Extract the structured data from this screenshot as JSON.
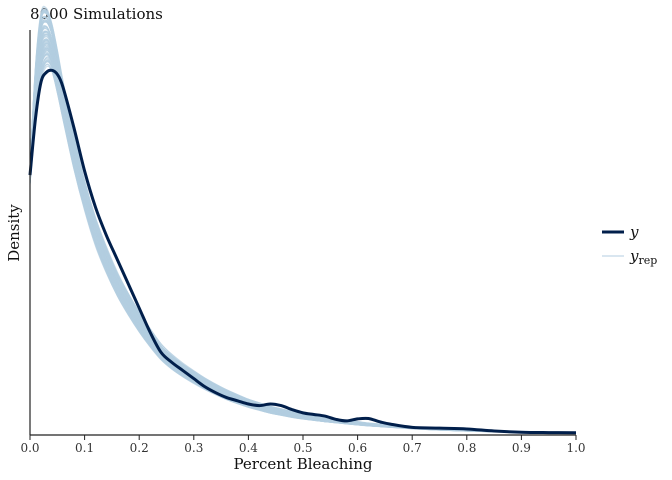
{
  "chart_data": {
    "type": "line",
    "title": "8000 Simulations",
    "xlabel": "Percent Bleaching",
    "ylabel": "Density",
    "xlim": [
      0,
      1
    ],
    "ylim": [
      0,
      1
    ],
    "y_axis_ticks": false,
    "x_ticks": [
      0.0,
      0.1,
      0.2,
      0.3,
      0.4,
      0.5,
      0.6,
      0.7,
      0.8,
      0.9,
      1.0
    ],
    "x_tick_labels": [
      "0.0",
      "0.1",
      "0.2",
      "0.3",
      "0.4",
      "0.5",
      "0.6",
      "0.7",
      "0.8",
      "0.9",
      "1.0"
    ],
    "legend": {
      "position": "right",
      "entries": [
        {
          "label": "y",
          "subscript": "",
          "color": "#011f4b",
          "style": "thick"
        },
        {
          "label": "y",
          "subscript": "rep",
          "color": "#b3cde0",
          "style": "thin"
        }
      ]
    },
    "series": [
      {
        "name": "y",
        "color": "#011f4b",
        "x": [
          0.0,
          0.01,
          0.02,
          0.03,
          0.04,
          0.05,
          0.06,
          0.08,
          0.1,
          0.12,
          0.14,
          0.16,
          0.18,
          0.2,
          0.22,
          0.24,
          0.26,
          0.28,
          0.3,
          0.32,
          0.34,
          0.36,
          0.38,
          0.4,
          0.42,
          0.44,
          0.46,
          0.48,
          0.5,
          0.52,
          0.54,
          0.56,
          0.58,
          0.6,
          0.62,
          0.64,
          0.66,
          0.7,
          0.75,
          0.8,
          0.85,
          0.9,
          0.95,
          1.0
        ],
        "y": [
          0.64,
          0.78,
          0.87,
          0.895,
          0.9,
          0.89,
          0.86,
          0.76,
          0.65,
          0.56,
          0.49,
          0.43,
          0.37,
          0.31,
          0.25,
          0.2,
          0.175,
          0.155,
          0.135,
          0.115,
          0.1,
          0.088,
          0.08,
          0.072,
          0.068,
          0.072,
          0.068,
          0.058,
          0.05,
          0.046,
          0.042,
          0.034,
          0.03,
          0.035,
          0.036,
          0.028,
          0.022,
          0.014,
          0.012,
          0.01,
          0.005,
          0.002,
          0.001,
          0.0005
        ]
      }
    ],
    "replicates": {
      "name": "y_rep",
      "color": "#b3cde0",
      "x": [
        0.0,
        0.01,
        0.02,
        0.03,
        0.04,
        0.05,
        0.06,
        0.08,
        0.1,
        0.12,
        0.14,
        0.16,
        0.18,
        0.2,
        0.22,
        0.24,
        0.26,
        0.28,
        0.3,
        0.32,
        0.34,
        0.36,
        0.38,
        0.4,
        0.42,
        0.44,
        0.46,
        0.48,
        0.5,
        0.52,
        0.54,
        0.56,
        0.58,
        0.6,
        0.62,
        0.64,
        0.66,
        0.7,
        0.75,
        0.8,
        0.85,
        0.9,
        0.95,
        1.0
      ],
      "center": [
        0.64,
        0.84,
        0.96,
        0.985,
        0.96,
        0.9,
        0.83,
        0.7,
        0.59,
        0.5,
        0.43,
        0.37,
        0.32,
        0.275,
        0.235,
        0.2,
        0.175,
        0.155,
        0.138,
        0.122,
        0.108,
        0.095,
        0.084,
        0.074,
        0.066,
        0.058,
        0.052,
        0.046,
        0.041,
        0.037,
        0.033,
        0.03,
        0.027,
        0.024,
        0.021,
        0.019,
        0.017,
        0.013,
        0.009,
        0.006,
        0.004,
        0.002,
        0.001,
        0.0004
      ],
      "spread": [
        0.02,
        0.06,
        0.07,
        0.06,
        0.05,
        0.045,
        0.04,
        0.035,
        0.03,
        0.028,
        0.026,
        0.024,
        0.022,
        0.02,
        0.018,
        0.016,
        0.015,
        0.014,
        0.013,
        0.012,
        0.011,
        0.01,
        0.009,
        0.008,
        0.0075,
        0.007,
        0.0065,
        0.006,
        0.0055,
        0.005,
        0.0045,
        0.004,
        0.0038,
        0.0035,
        0.003,
        0.0028,
        0.0026,
        0.002,
        0.0016,
        0.0012,
        0.0009,
        0.0006,
        0.0004,
        0.0002
      ]
    }
  }
}
